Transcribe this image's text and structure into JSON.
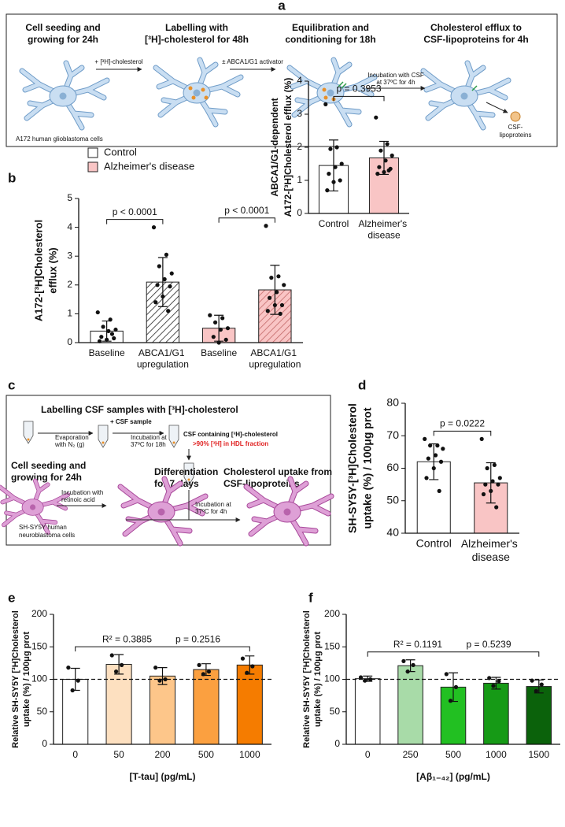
{
  "panels": {
    "a": {
      "label": "a",
      "steps": [
        [
          "Cell seeding and",
          "growing for 24h"
        ],
        [
          "Labelling with",
          "[³H]-cholesterol for 48h"
        ],
        [
          "Equilibration and",
          "conditioning for 18h"
        ],
        [
          "Cholesterol efflux to",
          "CSF-lipoproteins for 4h"
        ]
      ],
      "arrows": [
        [
          "+ [³H]-cholesterol"
        ],
        [
          "± ABCA1/G1 activator"
        ],
        [
          "Incubation with CSF",
          "at 37ºC for 4h"
        ]
      ],
      "cell_line": "A172 human glioblastoma cells",
      "lipoproteins": [
        "CSF-",
        "lipoproteins"
      ]
    },
    "c": {
      "label": "c",
      "title": "Labelling CSF samples with [³H]-cholesterol",
      "evaporation": [
        "Evaporation",
        "with N₂ (g)"
      ],
      "csf_sample": "+ CSF sample",
      "incubation_18h": [
        "Incubation at",
        "37ºC for 18h"
      ],
      "csf_result": "CSF containing [³H]-cholesterol",
      "hdl_fraction": ">90% [³H] in HDL fraction",
      "steps": [
        [
          "Cell seeding and",
          "growing for 24h"
        ],
        [
          "Differentiation",
          "for 7 days"
        ],
        [
          "Cholesterol uptake from",
          "CSF-lipoproteins"
        ]
      ],
      "retinoic": [
        "Incubation with",
        "retinoic acid"
      ],
      "incubation_4h": [
        "Incubation at",
        "37ºC for 4h"
      ],
      "cell_line": [
        "SH-SY5Y human",
        "neuroblastoma cells"
      ]
    }
  },
  "chart_data": [
    {
      "type": "bar",
      "panel": "b",
      "ylabel": [
        "A172-[³H]Cholesterol",
        "efflux (%)"
      ],
      "categories": [
        "Baseline",
        "ABCA1/G1 upregulation",
        "Baseline",
        "ABCA1/G1 upregulation"
      ],
      "values": [
        0.4,
        2.1,
        0.5,
        1.83
      ],
      "errors": [
        0.35,
        0.85,
        0.45,
        0.85
      ],
      "colors": [
        "#ffffff",
        "#ffffff",
        "#f9c5c5",
        "#f9c5c5"
      ],
      "hatch": [
        false,
        true,
        false,
        true
      ],
      "points": [
        [
          1.05,
          0.8,
          0.55,
          0.45,
          0.4,
          0.2,
          0.15,
          0.1,
          0.05,
          0.3
        ],
        [
          4.0,
          3.05,
          2.65,
          2.4,
          2.2,
          2.0,
          1.95,
          1.6,
          1.4,
          1.1
        ],
        [
          0.95,
          0.85,
          0.7,
          0.5,
          0.45,
          0.2,
          0.1,
          0.0
        ],
        [
          4.05,
          2.3,
          2.25,
          2.0,
          1.75,
          1.55,
          1.3,
          1.3,
          1.1,
          1.0
        ]
      ],
      "ylim": [
        0,
        5
      ],
      "yticks": [
        0,
        1,
        2,
        3,
        4,
        5
      ],
      "legend": [
        {
          "name": "Control",
          "color": "#ffffff"
        },
        {
          "name": "Alzheimer's disease",
          "color": "#f9c5c5"
        }
      ],
      "annotations": [
        {
          "text": [
            "p < 0.0001"
          ],
          "between": [
            0,
            1
          ]
        },
        {
          "text": [
            "p < 0.0001"
          ],
          "between": [
            2,
            3
          ]
        }
      ]
    },
    {
      "type": "bar",
      "ylabel": [
        "ABCA1/G1-dependent",
        "A172-[³H]Cholesterol efflux (%)"
      ],
      "categories": [
        "Control",
        "Alzheimer's disease"
      ],
      "values": [
        1.45,
        1.68
      ],
      "errors": [
        0.77,
        0.5
      ],
      "colors": [
        "#ffffff",
        "#f9c5c5"
      ],
      "points": [
        [
          3.3,
          2.0,
          1.95,
          1.5,
          1.4,
          1.2,
          1.0,
          0.95,
          0.7
        ],
        [
          2.9,
          2.1,
          1.9,
          1.75,
          1.6,
          1.4,
          1.35,
          1.25,
          1.2,
          1.3
        ]
      ],
      "ylim": [
        0,
        4
      ],
      "yticks": [
        0,
        1,
        2,
        3,
        4
      ],
      "annotations": [
        {
          "text": [
            "p = 0.3953"
          ],
          "between": [
            0,
            1
          ]
        }
      ]
    },
    {
      "type": "bar",
      "panel": "d",
      "ylabel": [
        "SH-SY5Y-[³H]Cholesterol",
        "uptake (%) / 100μg prot"
      ],
      "categories": [
        "Control",
        "Alzheimer's disease"
      ],
      "values": [
        62,
        55.5
      ],
      "errors": [
        5.5,
        6.2
      ],
      "colors": [
        "#ffffff",
        "#f9c5c5"
      ],
      "points": [
        [
          69,
          67,
          67,
          66,
          64,
          63,
          62,
          60,
          57,
          53
        ],
        [
          69,
          61,
          60,
          57,
          56,
          55,
          55,
          53,
          52,
          48
        ]
      ],
      "ylim": [
        40,
        80
      ],
      "yticks": [
        40,
        50,
        60,
        70,
        80
      ],
      "annotations": [
        {
          "text": [
            "p = 0.0222"
          ],
          "between": [
            0,
            1
          ]
        }
      ]
    },
    {
      "type": "bar",
      "panel": "e",
      "ylabel": [
        "Relative SH-SY5Y [³H]Cholesterol",
        "uptake (%) / 100μg prot"
      ],
      "xlabel": "[T-tau] (pg/mL)",
      "categories": [
        "0",
        "50",
        "200",
        "500",
        "1000"
      ],
      "values": [
        100,
        123,
        105,
        115,
        122
      ],
      "errors": [
        17,
        15,
        13,
        9,
        14
      ],
      "colors": [
        "#ffffff",
        "#fde0c0",
        "#fdc68a",
        "#fba040",
        "#f57c00"
      ],
      "points": [
        [
          118,
          98,
          83
        ],
        [
          137,
          122,
          112
        ],
        [
          118,
          100,
          98
        ],
        [
          122,
          112,
          108
        ],
        [
          132,
          120,
          110
        ]
      ],
      "ylim": [
        0,
        200
      ],
      "yticks": [
        0,
        50,
        100,
        150,
        200
      ],
      "reference_line": 100,
      "annotations": [
        {
          "text": [
            "R² = 0.3885",
            "p = 0.2516"
          ],
          "between": [
            0,
            4
          ]
        }
      ]
    },
    {
      "type": "bar",
      "panel": "f",
      "ylabel": [
        "Relative SH-SY5Y [³H]Cholesterol",
        "uptake (%) / 100μg prot"
      ],
      "xlabel": "[Aβ₁₋₄₂] (pg/mL)",
      "categories": [
        "0",
        "250",
        "500",
        "1000",
        "1500"
      ],
      "values": [
        101,
        121,
        88,
        94,
        89
      ],
      "errors": [
        4,
        9,
        22,
        9,
        10
      ],
      "colors": [
        "#ffffff",
        "#a8dba8",
        "#22c022",
        "#169a16",
        "#0b620b"
      ],
      "points": [
        [
          103,
          100,
          98
        ],
        [
          128,
          122,
          112
        ],
        [
          108,
          88,
          67
        ],
        [
          102,
          97,
          90
        ],
        [
          98,
          92,
          82
        ]
      ],
      "ylim": [
        0,
        200
      ],
      "yticks": [
        0,
        50,
        100,
        150,
        200
      ],
      "reference_line": 100,
      "annotations": [
        {
          "text": [
            "R² = 0.1191",
            "p = 0.5239"
          ],
          "between": [
            0,
            4
          ]
        }
      ]
    }
  ]
}
